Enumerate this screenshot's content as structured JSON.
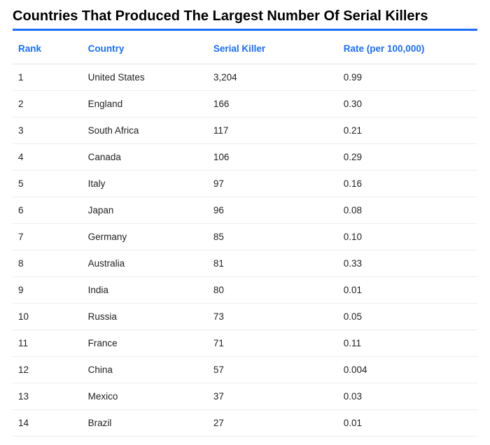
{
  "title": "Countries That Produced The Largest Number Of Serial Killers",
  "table": {
    "columns": [
      "Rank",
      "Country",
      "Serial Killer",
      "Rate (per 100,000)"
    ],
    "rows": [
      [
        "1",
        "United States",
        "3,204",
        "0.99"
      ],
      [
        "2",
        "England",
        "166",
        "0.30"
      ],
      [
        "3",
        "South Africa",
        "117",
        "0.21"
      ],
      [
        "4",
        "Canada",
        "106",
        "0.29"
      ],
      [
        "5",
        "Italy",
        "97",
        "0.16"
      ],
      [
        "6",
        "Japan",
        "96",
        "0.08"
      ],
      [
        "7",
        "Germany",
        "85",
        "0.10"
      ],
      [
        "8",
        "Australia",
        "81",
        "0.33"
      ],
      [
        "9",
        "India",
        "80",
        "0.01"
      ],
      [
        "10",
        "Russia",
        "73",
        "0.05"
      ],
      [
        "11",
        "France",
        "71",
        "0.11"
      ],
      [
        "12",
        "China",
        "57",
        "0.004"
      ],
      [
        "13",
        "Mexico",
        "37",
        "0.03"
      ],
      [
        "14",
        "Brazil",
        "27",
        "0.01"
      ]
    ]
  },
  "styles": {
    "accent_color": "#1a6eff",
    "title_color": "#000000",
    "text_color": "#222222",
    "row_border_color": "#eeeeee",
    "background_color": "#ffffff",
    "title_fontsize": 20,
    "header_fontsize": 13.5,
    "cell_fontsize": 13.5,
    "column_widths_pct": [
      15,
      27,
      28,
      30
    ]
  }
}
